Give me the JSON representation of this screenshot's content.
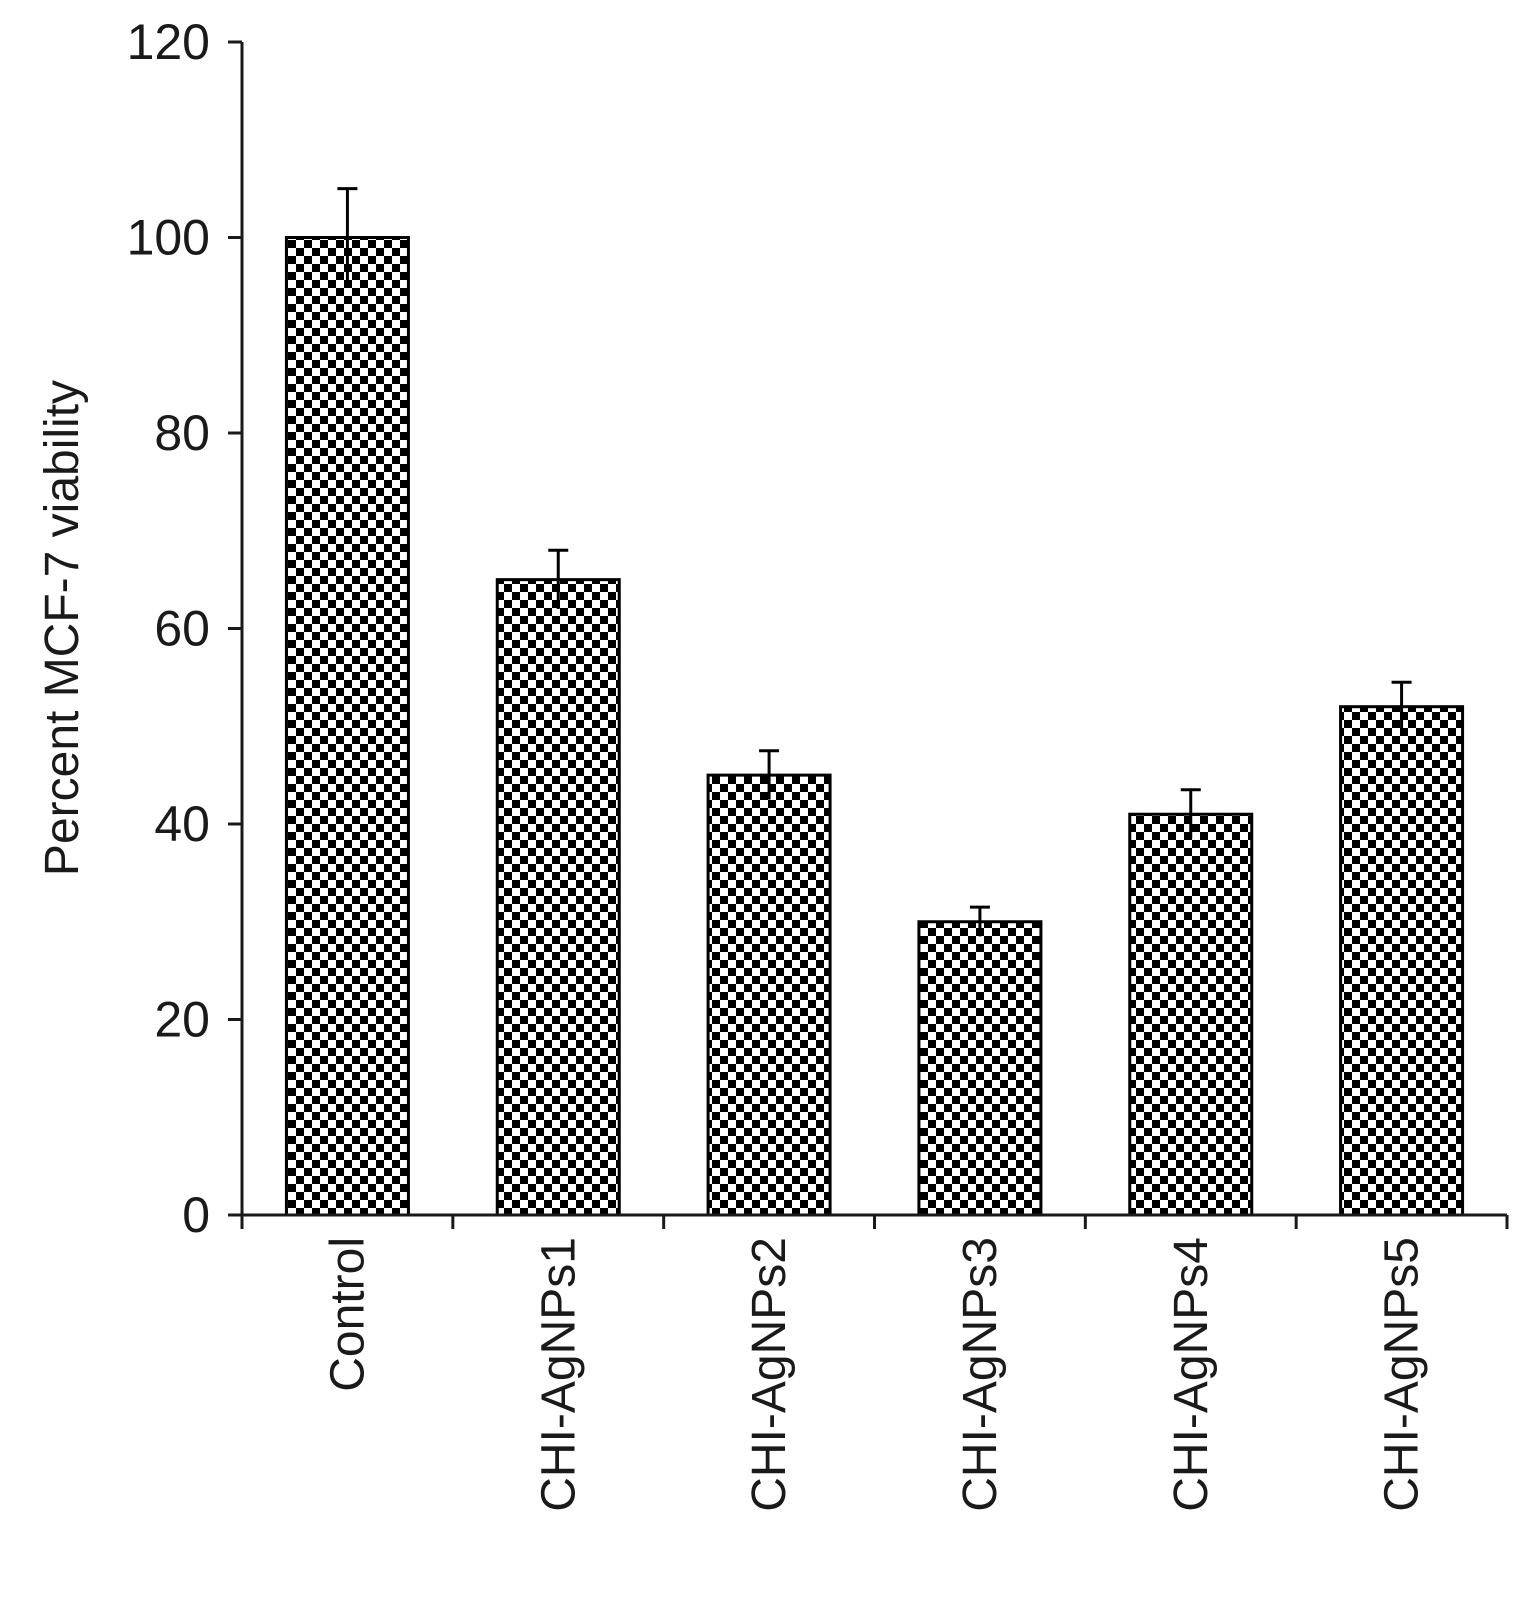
{
  "chart_data": {
    "type": "bar",
    "title": "",
    "xlabel": "",
    "ylabel": "Percent MCF-7 viability",
    "categories": [
      "Control",
      "CHI-AgNPs1",
      "CHI-AgNPs2",
      "CHI-AgNPs3",
      "CHI-AgNPs4",
      "CHI-AgNPs5"
    ],
    "values": [
      100,
      65,
      45,
      30,
      41,
      52
    ],
    "errors": [
      5,
      3,
      2.5,
      1.5,
      2.5,
      2.5
    ],
    "ylim": [
      0,
      120
    ],
    "yticks": [
      0,
      20,
      40,
      60,
      80,
      100,
      120
    ],
    "grid": false,
    "legend": "none",
    "bar_fill": "checkerboard",
    "colors": {
      "bar_dark": "#000000",
      "bar_light": "#ffffff",
      "axis": "#1a1a1a"
    }
  }
}
